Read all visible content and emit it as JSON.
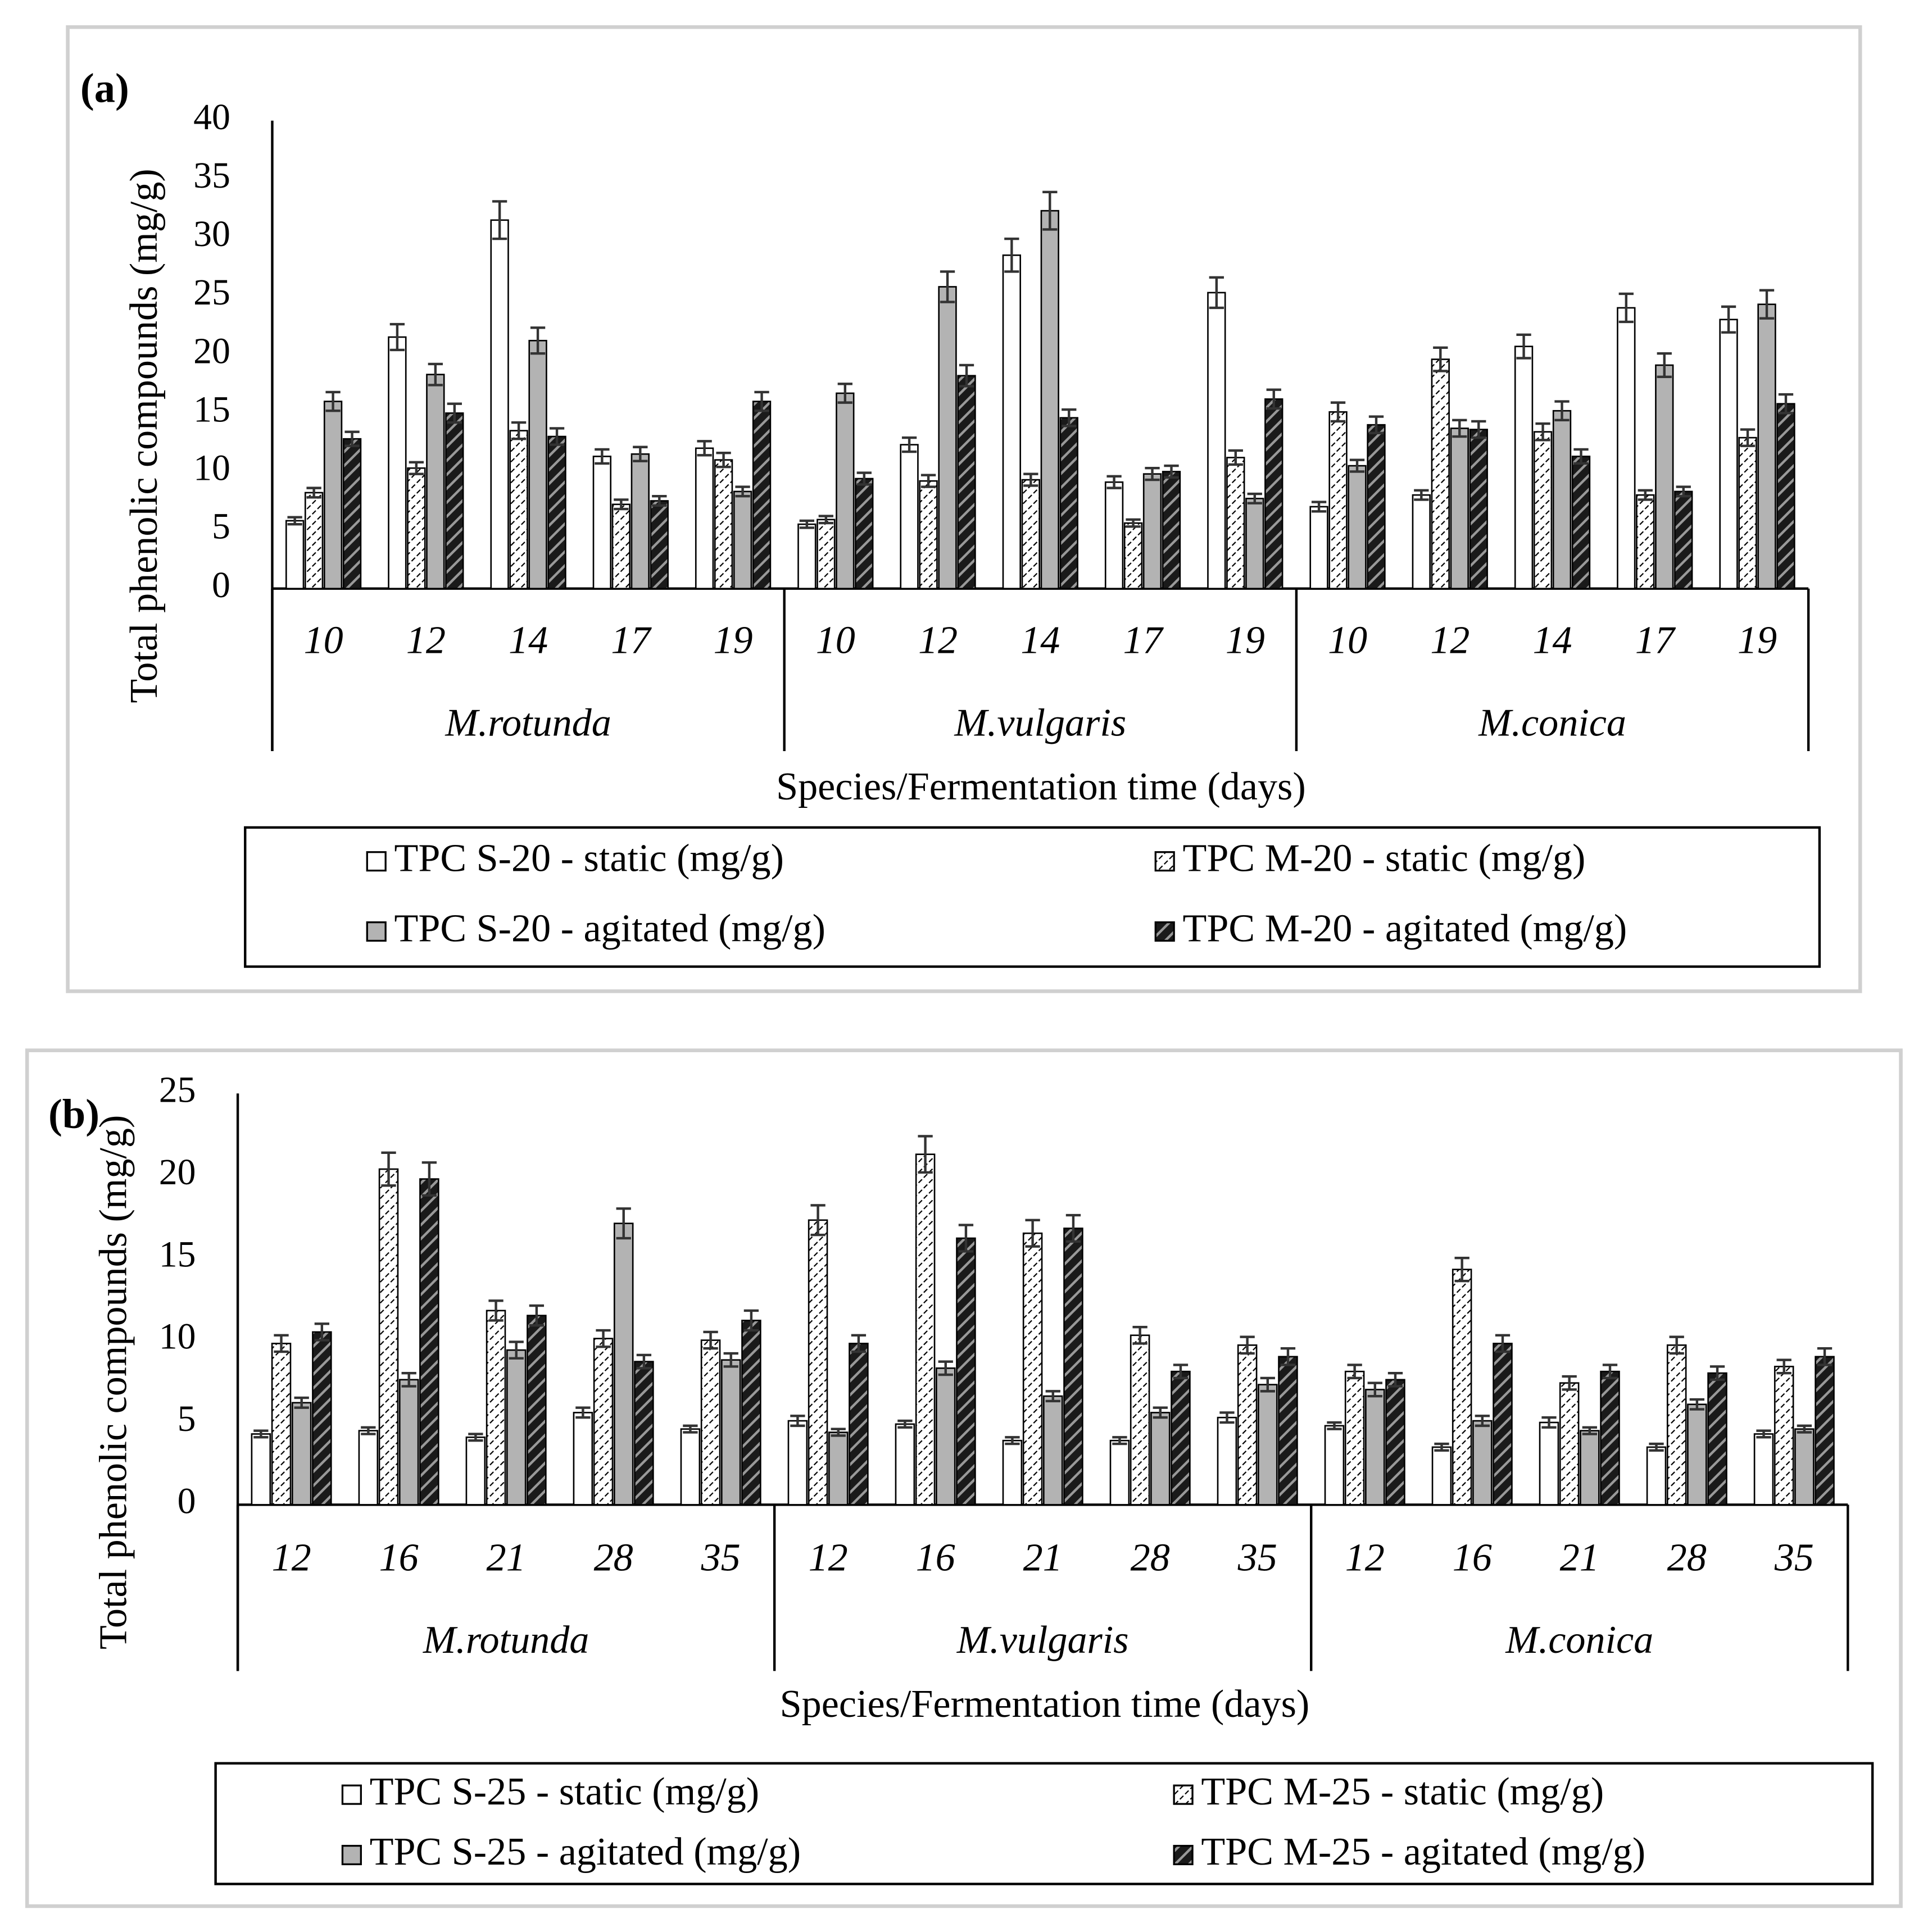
{
  "chart_data": [
    {
      "type": "bar",
      "label": "(a)",
      "ylabel": "Total phenolic compounds (mg/g)",
      "xlabel": "Species/Fermentation time (days)",
      "groups": [
        "M.rotunda",
        "M.vulgaris",
        "M.conica"
      ],
      "categories": [
        "10",
        "12",
        "14",
        "17",
        "19",
        "10",
        "12",
        "14",
        "17",
        "19",
        "10",
        "12",
        "14",
        "17",
        "19"
      ],
      "ylim": [
        0,
        40
      ],
      "yticks": [
        0,
        5,
        10,
        15,
        20,
        25,
        30,
        35,
        40
      ],
      "series": [
        {
          "name": "TPC S-20 - static (mg/g)",
          "color": "#ffffff",
          "pattern": "solid",
          "values": [
            5.8,
            21.5,
            31.5,
            11.3,
            12,
            5.5,
            12.3,
            28.5,
            9.1,
            25.3,
            7,
            8,
            20.7,
            24,
            23
          ],
          "errors": [
            0.3,
            1.1,
            1.6,
            0.6,
            0.6,
            0.3,
            0.6,
            1.4,
            0.5,
            1.3,
            0.4,
            0.4,
            1,
            1.2,
            1.1
          ]
        },
        {
          "name": "TPC M-20 - static (mg/g)",
          "color": "#ffffff",
          "pattern": "dots",
          "values": [
            8.2,
            10.3,
            13.5,
            7.2,
            11,
            5.9,
            9.2,
            9.3,
            5.6,
            11.2,
            15.1,
            19.6,
            13.4,
            8,
            12.9
          ],
          "errors": [
            0.4,
            0.5,
            0.7,
            0.4,
            0.6,
            0.3,
            0.5,
            0.5,
            0.3,
            0.6,
            0.8,
            1,
            0.7,
            0.4,
            0.7
          ]
        },
        {
          "name": "TPC S-20 - agitated (mg/g)",
          "color": "#b3b3b3",
          "pattern": "solid",
          "values": [
            16,
            18.3,
            21.2,
            11.5,
            8.3,
            16.7,
            25.8,
            32.3,
            9.8,
            7.7,
            10.5,
            13.7,
            15.2,
            19.1,
            24.3
          ],
          "errors": [
            0.8,
            0.9,
            1.1,
            0.6,
            0.4,
            0.8,
            1.3,
            1.6,
            0.5,
            0.4,
            0.5,
            0.7,
            0.8,
            1,
            1.2
          ]
        },
        {
          "name": "TPC M-20 - agitated (mg/g)",
          "color": "#1a1a1a",
          "pattern": "stripes",
          "values": [
            12.8,
            15,
            13,
            7.5,
            16,
            9.4,
            18.2,
            14.6,
            10,
            16.2,
            14,
            13.6,
            11.3,
            8.3,
            15.8
          ],
          "errors": [
            0.6,
            0.8,
            0.7,
            0.4,
            0.8,
            0.5,
            0.9,
            0.7,
            0.5,
            0.8,
            0.7,
            0.7,
            0.6,
            0.4,
            0.8
          ]
        }
      ]
    },
    {
      "type": "bar",
      "label": "(b)",
      "ylabel": "Total phenolic compounds (mg/g)",
      "xlabel": "Species/Fermentation time (days)",
      "groups": [
        "M.rotunda",
        "M.vulgaris",
        "M.conica"
      ],
      "categories": [
        "12",
        "16",
        "21",
        "28",
        "35",
        "12",
        "16",
        "21",
        "28",
        "35",
        "12",
        "16",
        "21",
        "28",
        "35"
      ],
      "ylim": [
        0,
        25
      ],
      "yticks": [
        0,
        5,
        10,
        15,
        20,
        25
      ],
      "series": [
        {
          "name": "TPC S-25 - static (mg/g)",
          "color": "#ffffff",
          "pattern": "solid",
          "values": [
            4.3,
            4.5,
            4.1,
            5.6,
            4.6,
            5.1,
            4.9,
            3.9,
            3.9,
            5.3,
            4.8,
            3.5,
            5,
            3.5,
            4.3
          ],
          "errors": [
            0.2,
            0.2,
            0.2,
            0.3,
            0.2,
            0.3,
            0.2,
            0.2,
            0.2,
            0.3,
            0.2,
            0.2,
            0.3,
            0.2,
            0.2
          ]
        },
        {
          "name": "TPC M-25 - static (mg/g)",
          "color": "#ffffff",
          "pattern": "dots",
          "values": [
            9.8,
            20.4,
            11.8,
            10.1,
            10,
            17.3,
            21.3,
            16.5,
            10.3,
            9.7,
            8.1,
            14.3,
            7.4,
            9.7,
            8.4
          ],
          "errors": [
            0.5,
            1,
            0.6,
            0.5,
            0.5,
            0.9,
            1.1,
            0.8,
            0.5,
            0.5,
            0.4,
            0.7,
            0.4,
            0.5,
            0.4
          ]
        },
        {
          "name": "TPC S-25 - agitated (mg/g)",
          "color": "#b3b3b3",
          "pattern": "solid",
          "values": [
            6.2,
            7.6,
            9.4,
            17.1,
            8.8,
            4.4,
            8.3,
            6.6,
            5.6,
            7.3,
            7,
            5.1,
            4.5,
            6.1,
            4.6
          ],
          "errors": [
            0.3,
            0.4,
            0.5,
            0.9,
            0.4,
            0.2,
            0.4,
            0.3,
            0.3,
            0.4,
            0.4,
            0.3,
            0.2,
            0.3,
            0.2
          ]
        },
        {
          "name": "TPC M-25 - agitated (mg/g)",
          "color": "#1a1a1a",
          "pattern": "stripes",
          "values": [
            10.5,
            19.8,
            11.5,
            8.7,
            11.2,
            9.8,
            16.2,
            16.8,
            8.1,
            9,
            7.6,
            9.8,
            8.1,
            8,
            9
          ],
          "errors": [
            0.5,
            1,
            0.6,
            0.4,
            0.6,
            0.5,
            0.8,
            0.8,
            0.4,
            0.5,
            0.4,
            0.5,
            0.4,
            0.4,
            0.5
          ]
        }
      ]
    }
  ]
}
